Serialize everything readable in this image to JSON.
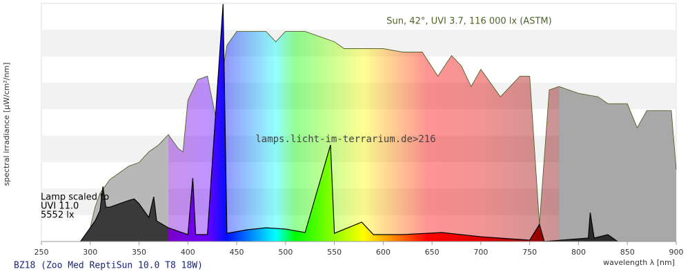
{
  "chart_data": {
    "type": "area",
    "title": "BZ18 (Zoo Med ReptiSun 10.0 T8 18W)",
    "xlabel": "wavelength λ [nm]",
    "ylabel": "spectral irradiance [µW/cm²/nm]",
    "annotations": [
      "lamps.licht-im-terrarium.de>216",
      "Lamp scaled to",
      "UVI 11.0",
      "5552 lx"
    ],
    "xlim": [
      250,
      900
    ],
    "xticks": [
      250,
      300,
      350,
      400,
      450,
      500,
      550,
      600,
      650,
      700,
      750,
      800,
      850,
      900
    ],
    "ylim": [
      0,
      9
    ],
    "grid": true,
    "series": [
      {
        "name": "Sun, 42°, UVI 3.7, 116 000 lx (ASTM)",
        "color": "#4f6228",
        "x": [
          295,
          300,
          305,
          310,
          320,
          330,
          340,
          350,
          360,
          370,
          380,
          390,
          395,
          400,
          410,
          420,
          430,
          435,
          440,
          450,
          460,
          470,
          480,
          490,
          500,
          520,
          540,
          550,
          560,
          580,
          600,
          620,
          640,
          656,
          670,
          680,
          690,
          700,
          720,
          740,
          750,
          760,
          770,
          780,
          800,
          820,
          830,
          850,
          860,
          870,
          895,
          900
        ],
        "values": [
          0,
          0.52,
          1.3,
          1.82,
          2.34,
          2.6,
          2.86,
          2.99,
          3.39,
          3.65,
          4.04,
          3.52,
          3.39,
          5.34,
          6.12,
          6.25,
          4.43,
          6.25,
          7.42,
          7.94,
          7.94,
          7.94,
          7.94,
          7.55,
          7.94,
          7.94,
          7.68,
          7.55,
          7.29,
          7.29,
          7.29,
          7.16,
          7.16,
          6.25,
          7.03,
          6.64,
          5.86,
          6.51,
          5.47,
          6.25,
          6.25,
          0.65,
          5.73,
          5.86,
          5.6,
          5.47,
          5.21,
          5.21,
          4.3,
          4.95,
          4.95,
          2.73
        ]
      },
      {
        "color": "#000000",
        "x": [
          290,
          300,
          305,
          310,
          313,
          316,
          320,
          330,
          340,
          345,
          350,
          360,
          365,
          368,
          380,
          400,
          405,
          408,
          420,
          436,
          440,
          460,
          480,
          500,
          520,
          546,
          550,
          578,
          590,
          620,
          660,
          700,
          750,
          760,
          765,
          810,
          812,
          816,
          830,
          840
        ],
        "values": [
          0,
          0.52,
          0.78,
          1.17,
          2.08,
          1.3,
          1.3,
          1.43,
          1.56,
          1.61,
          1.43,
          0.91,
          1.69,
          0.78,
          0.52,
          0.26,
          2.4,
          0.26,
          0.26,
          8.98,
          0.31,
          0.44,
          0.52,
          0.47,
          0.34,
          3.65,
          0.31,
          0.73,
          0.26,
          0.26,
          0.34,
          0.18,
          0.05,
          0.65,
          0,
          0.13,
          1.09,
          0.13,
          0.26,
          0
        ]
      }
    ]
  }
}
